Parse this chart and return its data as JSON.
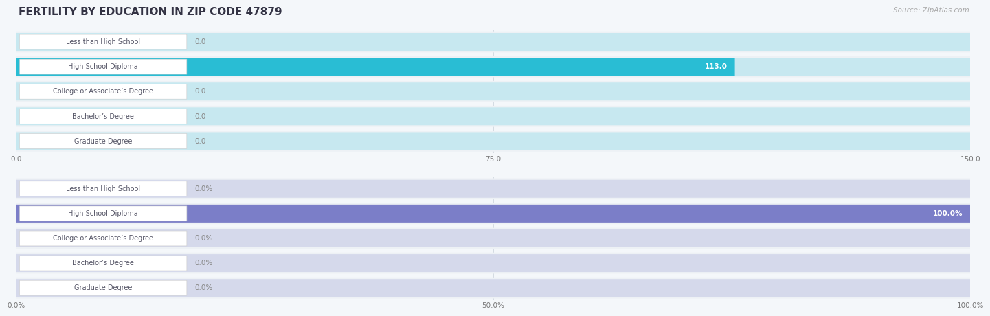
{
  "title": "FERTILITY BY EDUCATION IN ZIP CODE 47879",
  "source": "Source: ZipAtlas.com",
  "categories": [
    "Less than High School",
    "High School Diploma",
    "College or Associate’s Degree",
    "Bachelor’s Degree",
    "Graduate Degree"
  ],
  "values_abs": [
    0.0,
    113.0,
    0.0,
    0.0,
    0.0
  ],
  "values_pct": [
    0.0,
    100.0,
    0.0,
    0.0,
    0.0
  ],
  "xlim_abs": [
    0,
    150.0
  ],
  "xlim_pct": [
    0,
    100.0
  ],
  "xticks_abs": [
    0.0,
    75.0,
    150.0
  ],
  "xticks_pct": [
    0.0,
    50.0,
    100.0
  ],
  "xtick_labels_abs": [
    "0.0",
    "75.0",
    "150.0"
  ],
  "xtick_labels_pct": [
    "0.0%",
    "50.0%",
    "100.0%"
  ],
  "bar_color_teal_main": "#29BDD4",
  "bar_color_teal_light": "#80D8E8",
  "bar_color_purple_main": "#7B7EC8",
  "bar_color_purple_light": "#AAADDB",
  "row_bg_color": "#EDF1F5",
  "label_box_bg": "#FFFFFF",
  "label_text_color": "#555566",
  "value_text_color_inside": "#FFFFFF",
  "value_text_color_outside": "#888888",
  "title_color": "#333344",
  "source_color": "#AAAAAA",
  "grid_color": "#D0D8DF",
  "background_color": "#F4F7FA",
  "title_fontsize": 11,
  "label_fontsize": 7,
  "value_fontsize": 7.5,
  "tick_fontsize": 7.5,
  "source_fontsize": 7.5
}
